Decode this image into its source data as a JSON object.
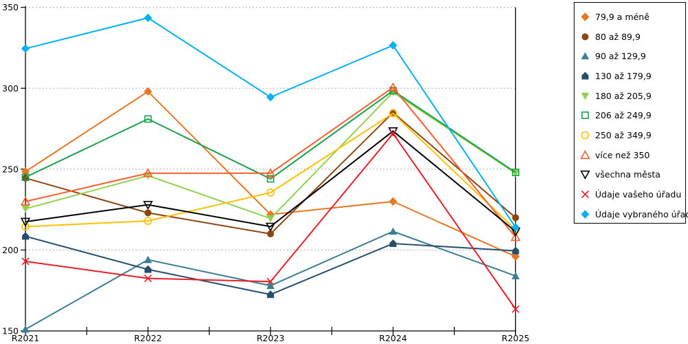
{
  "chart_data": {
    "type": "line",
    "categories": [
      "R2021",
      "R2022",
      "R2023",
      "R2024",
      "R2025"
    ],
    "yticks": [
      150,
      200,
      250,
      300,
      350
    ],
    "ylim": [
      150,
      350
    ],
    "grid": "horizontal-dotted",
    "legend_position": "right",
    "axis_color": "#000000",
    "grid_color": "#ababab",
    "series": [
      {
        "name": "79,9 a méně",
        "color": "#E87722",
        "marker": "diamond",
        "style": "filled",
        "values": [
          248.5,
          298,
          222,
          230,
          196
        ]
      },
      {
        "name": "80 až 89,9",
        "color": "#8C4511",
        "marker": "circle",
        "style": "filled",
        "values": [
          244.5,
          223,
          210,
          285,
          220
        ]
      },
      {
        "name": "90 až 129,9",
        "color": "#3A7E95",
        "marker": "triangle-up",
        "style": "filled",
        "values": [
          151,
          194,
          178,
          211.5,
          184
        ]
      },
      {
        "name": "130 až 179,9",
        "color": "#254E6F",
        "marker": "pentagon",
        "style": "filled",
        "values": [
          208.5,
          188,
          172.5,
          204,
          199.5
        ]
      },
      {
        "name": "180 až 205,9",
        "color": "#92D050",
        "marker": "triangle-down",
        "style": "filled",
        "values": [
          225.5,
          246,
          219.5,
          297.5,
          247.5
        ]
      },
      {
        "name": "206 až 249,9",
        "color": "#18A04B",
        "marker": "square",
        "style": "open",
        "values": [
          245,
          281,
          244,
          298.5,
          248
        ]
      },
      {
        "name": "250 až 349,9",
        "color": "#FFC000",
        "marker": "circle",
        "style": "open",
        "values": [
          214.5,
          218,
          235.5,
          284.5,
          212.5
        ]
      },
      {
        "name": "více než 350",
        "color": "#F95D2E",
        "marker": "triangle-up",
        "style": "open",
        "values": [
          230,
          247.5,
          247.5,
          300.5,
          208
        ]
      },
      {
        "name": "všechna města",
        "color": "#000000",
        "marker": "triangle-down",
        "style": "open",
        "values": [
          217.5,
          228,
          214.5,
          273.5,
          211.5
        ]
      },
      {
        "name": "Údaje vašeho úřadu",
        "color": "#EC1D24",
        "marker": "x",
        "style": "open",
        "values": [
          193,
          182.5,
          180.5,
          272,
          163.5
        ]
      },
      {
        "name": "Údaje vybraného úřadu",
        "color": "#00B0F0",
        "marker": "diamond",
        "style": "filled",
        "values": [
          324.5,
          343.5,
          294.5,
          326.5,
          214
        ]
      }
    ]
  }
}
